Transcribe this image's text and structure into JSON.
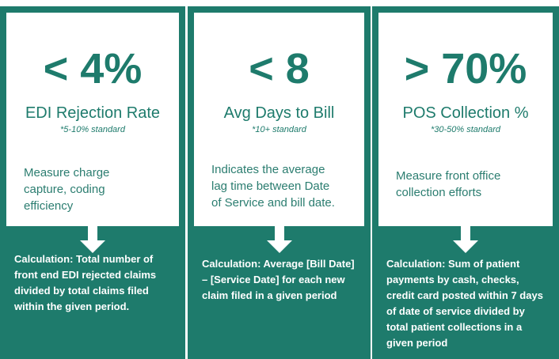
{
  "cards": [
    {
      "metric": "< 4%",
      "title": "EDI Rejection Rate",
      "standard": "*5-10% standard",
      "description": "Measure charge capture, coding efficiency",
      "calculation": "Calculation: Total number of front end EDI rejected claims divided by total claims filed within the given period."
    },
    {
      "metric": "< 8",
      "title": "Avg Days to Bill",
      "standard": "*10+ standard",
      "description": "Indicates the average lag time between Date of Service and bill date.",
      "calculation": "Calculation: Average [Bill Date] – [Service Date] for each new claim filed in a given period"
    },
    {
      "metric": "> 70%",
      "title": "POS Collection %",
      "standard": "*30-50% standard",
      "description": "Measure front office collection efforts",
      "calculation": "Calculation: Sum of patient payments by cash, checks, credit card posted within 7 days of date of service divided by total patient collections in a given period"
    }
  ]
}
